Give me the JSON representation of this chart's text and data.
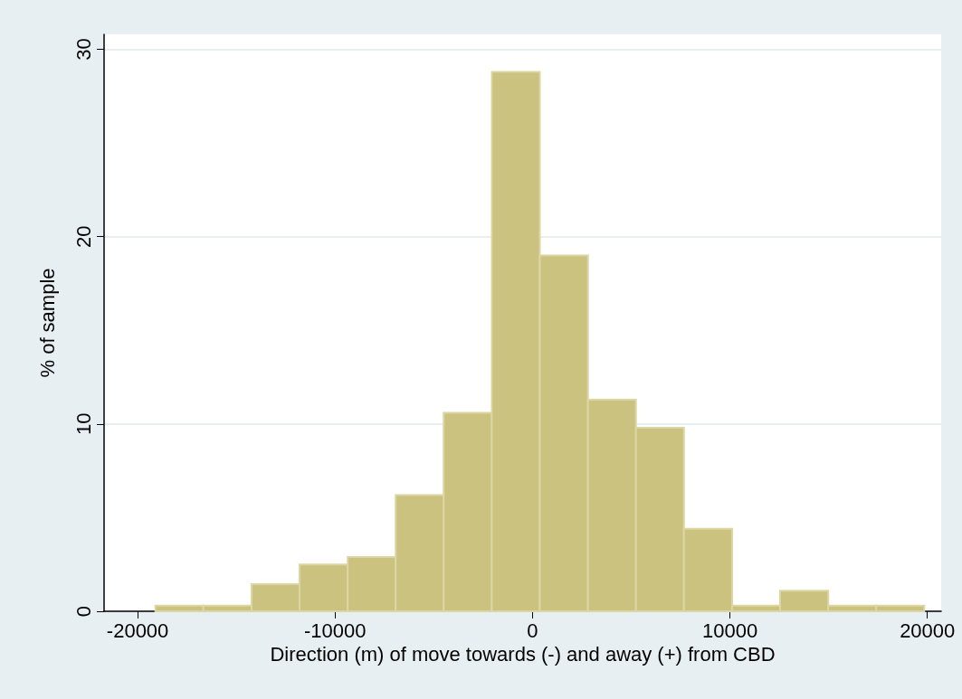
{
  "chart_data": {
    "type": "histogram",
    "xlabel": "Direction (m) of move towards (-) and away (+) from CBD",
    "ylabel": "% of sample",
    "bins": [
      -19100,
      -16670,
      -14230,
      -11800,
      -9360,
      -6930,
      -4500,
      -2060,
      370,
      2810,
      5240,
      7670,
      10110,
      12540,
      14980,
      17410,
      19840
    ],
    "values": [
      0.3,
      0.3,
      1.45,
      2.5,
      2.9,
      6.2,
      10.6,
      28.8,
      19.0,
      11.3,
      9.8,
      4.4,
      0.3,
      1.1,
      0.3,
      0.3
    ],
    "color": "#cbc27f",
    "xlim": [
      -21700,
      20700
    ],
    "xticks": [
      -20000,
      -10000,
      0,
      10000,
      20000
    ],
    "ylim": [
      0,
      30.8
    ],
    "yticks": [
      0,
      10,
      20,
      30
    ],
    "grid": "y"
  }
}
